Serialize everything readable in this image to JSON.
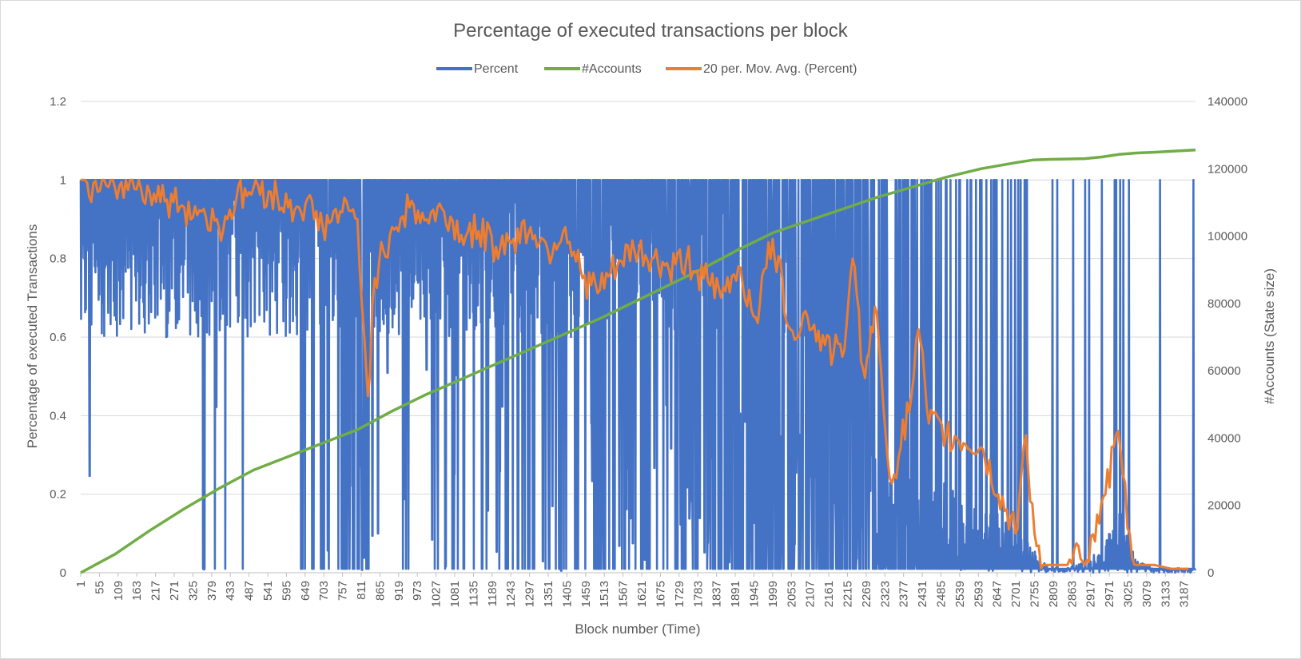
{
  "chart_data": {
    "type": "line",
    "title": "Percentage of executed transactions per block",
    "xlabel": "Block number (Time)",
    "ylabel": "Percentage of executed Transactions",
    "y2label": "#Accounts (State size)",
    "ylim": [
      0,
      1.2
    ],
    "y2lim": [
      0,
      140000
    ],
    "y_ticks": [
      "0",
      "0.2",
      "0.4",
      "0.6",
      "0.8",
      "1",
      "1.2"
    ],
    "y2_ticks": [
      "0",
      "20000",
      "40000",
      "60000",
      "80000",
      "100000",
      "120000",
      "140000"
    ],
    "x_ticks": [
      "1",
      "55",
      "109",
      "163",
      "217",
      "271",
      "325",
      "379",
      "433",
      "487",
      "541",
      "595",
      "649",
      "703",
      "757",
      "811",
      "865",
      "919",
      "973",
      "1027",
      "1081",
      "1135",
      "1189",
      "1243",
      "1297",
      "1351",
      "1405",
      "1459",
      "1513",
      "1567",
      "1621",
      "1675",
      "1729",
      "1783",
      "1837",
      "1891",
      "1945",
      "1999",
      "2053",
      "2107",
      "2161",
      "2215",
      "2269",
      "2323",
      "2377",
      "2431",
      "2485",
      "2539",
      "2593",
      "2647",
      "2701",
      "2755",
      "2809",
      "2863",
      "2917",
      "2971",
      "3025",
      "3079",
      "3133",
      "3187"
    ],
    "x_range": [
      1,
      3220
    ],
    "grid": "horizontal",
    "legend_position": "top",
    "series": [
      {
        "name": "Percent",
        "color": "#4472c4",
        "axis": "left",
        "note_shape": "dense oscillation between 0 and 1",
        "x": [
          1,
          20,
          50,
          100,
          150,
          200,
          250,
          300,
          350,
          400,
          450,
          500,
          550,
          600,
          650,
          700,
          750,
          800,
          850,
          900,
          950,
          1000,
          1050,
          1100,
          1150,
          1200,
          1250,
          1300,
          1350,
          1400,
          1450,
          1500,
          1550,
          1600,
          1650,
          1700,
          1750,
          1800,
          1850,
          1900,
          1950,
          2000,
          2050,
          2100,
          2150,
          2200,
          2250,
          2300,
          2350,
          2400,
          2450,
          2500,
          2550,
          2600,
          2650,
          2700,
          2750,
          2800,
          2850,
          2900,
          2950,
          3000,
          3050,
          3100,
          3150,
          3200
        ],
        "y": [
          1,
          0.9,
          1,
          1,
          1,
          1,
          1,
          1,
          0.95,
          0.92,
          0.95,
          1,
          1,
          1,
          0.92,
          0.9,
          0.9,
          0.7,
          0.85,
          0.9,
          0.95,
          0.92,
          0.9,
          0.85,
          0.88,
          0.85,
          0.85,
          0.85,
          0.88,
          0.88,
          0.78,
          0.8,
          0.82,
          0.85,
          0.8,
          0.8,
          0.75,
          0.75,
          0.7,
          0.72,
          0.7,
          0.65,
          0.62,
          0.6,
          0.6,
          0.6,
          0.55,
          0.5,
          0.45,
          0.4,
          0.4,
          0.38,
          0.3,
          0.3,
          0.25,
          0.2,
          0.1,
          0.02,
          0.02,
          0.05,
          0.1,
          0.3,
          0.05,
          0.02,
          0.02,
          0.02
        ]
      },
      {
        "name": "#Accounts",
        "color": "#70ad47",
        "axis": "right",
        "x": [
          1,
          100,
          200,
          300,
          400,
          500,
          600,
          700,
          800,
          900,
          1000,
          1100,
          1200,
          1300,
          1400,
          1500,
          1600,
          1700,
          1800,
          1900,
          2000,
          2100,
          2200,
          2300,
          2400,
          2500,
          2600,
          2700,
          2750,
          2800,
          2900,
          2950,
          3000,
          3050,
          3100,
          3150,
          3220
        ],
        "y": [
          0,
          5500,
          12500,
          19000,
          25000,
          30500,
          34500,
          38500,
          42500,
          48000,
          53000,
          57500,
          62000,
          66500,
          71000,
          75500,
          80500,
          85500,
          90500,
          96000,
          101000,
          104500,
          108000,
          111500,
          114500,
          117500,
          120000,
          121800,
          122600,
          122800,
          123000,
          123500,
          124300,
          124700,
          124900,
          125200,
          125600
        ]
      },
      {
        "name": "20 per. Mov. Avg. (Percent)",
        "color": "#ed7d31",
        "axis": "left",
        "x": [
          1,
          50,
          100,
          150,
          200,
          250,
          300,
          350,
          400,
          450,
          500,
          550,
          600,
          650,
          700,
          750,
          800,
          820,
          830,
          850,
          900,
          950,
          1000,
          1050,
          1100,
          1150,
          1200,
          1250,
          1300,
          1350,
          1400,
          1450,
          1500,
          1550,
          1600,
          1650,
          1700,
          1750,
          1800,
          1850,
          1900,
          1950,
          1999,
          2050,
          2100,
          2150,
          2200,
          2230,
          2260,
          2300,
          2330,
          2350,
          2400,
          2420,
          2450,
          2500,
          2550,
          2600,
          2650,
          2700,
          2730,
          2755,
          2780,
          2800,
          2850,
          2870,
          2900,
          2930,
          2960,
          2990,
          3010,
          3030,
          3050,
          3100,
          3150,
          3200
        ],
        "y": [
          1,
          0.97,
          0.98,
          1,
          0.97,
          0.95,
          0.93,
          0.92,
          0.88,
          0.95,
          0.98,
          0.97,
          0.93,
          0.94,
          0.88,
          0.92,
          0.9,
          0.6,
          0.45,
          0.75,
          0.88,
          0.93,
          0.9,
          0.92,
          0.86,
          0.87,
          0.83,
          0.85,
          0.88,
          0.82,
          0.88,
          0.75,
          0.72,
          0.78,
          0.82,
          0.8,
          0.77,
          0.8,
          0.75,
          0.7,
          0.78,
          0.65,
          0.85,
          0.62,
          0.65,
          0.58,
          0.55,
          0.8,
          0.52,
          0.66,
          0.3,
          0.25,
          0.45,
          0.62,
          0.38,
          0.35,
          0.33,
          0.32,
          0.2,
          0.1,
          0.35,
          0.1,
          0.02,
          0.02,
          0.02,
          0.06,
          0.02,
          0.08,
          0.2,
          0.35,
          0.25,
          0.1,
          0.02,
          0.02,
          0.01,
          0.01
        ]
      }
    ]
  }
}
